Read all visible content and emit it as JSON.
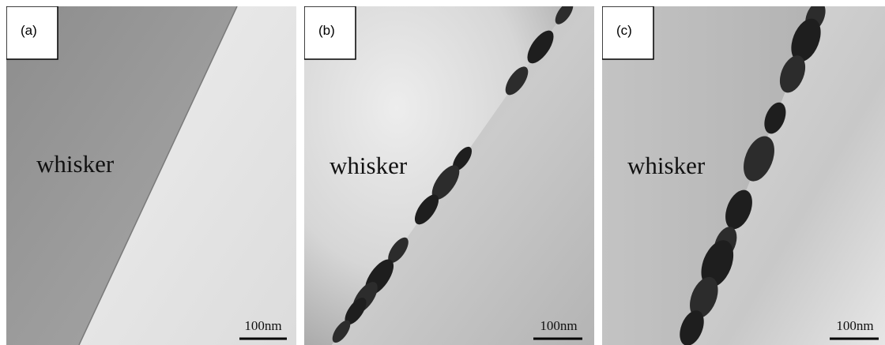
{
  "panels": [
    {
      "label": "(a)",
      "region_label": "whisker",
      "scale_bar": "100nm"
    },
    {
      "label": "(b)",
      "region_label": "whisker",
      "scale_bar": "100nm"
    },
    {
      "label": "(c)",
      "region_label": "whisker",
      "scale_bar": "100nm"
    }
  ]
}
